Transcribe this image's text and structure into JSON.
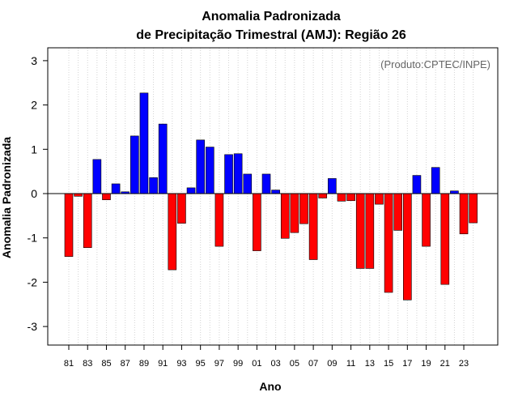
{
  "chart_data": {
    "type": "bar",
    "title_line1": "Anomalia Padronizada",
    "title_line2": "de Precipitação Trimestral (AMJ): Região 26",
    "xlabel": "Ano",
    "ylabel": "Anomalia Padronizada",
    "watermark": "(Produto:CPTEC/INPE)",
    "ylim": [
      -3.4,
      3.3
    ],
    "yticks": [
      "-3",
      "-2",
      "-1",
      "0",
      "1",
      "2",
      "3"
    ],
    "ytick_values": [
      -3,
      -2,
      -1,
      0,
      1,
      2,
      3
    ],
    "categories": [
      "81",
      "82",
      "83",
      "84",
      "85",
      "86",
      "87",
      "88",
      "89",
      "90",
      "91",
      "92",
      "93",
      "94",
      "95",
      "96",
      "97",
      "98",
      "99",
      "00",
      "01",
      "02",
      "03",
      "04",
      "05",
      "06",
      "07",
      "08",
      "09",
      "10",
      "11",
      "12",
      "13",
      "14",
      "15",
      "16",
      "17",
      "18",
      "19",
      "20",
      "21",
      "22",
      "23",
      "24"
    ],
    "xtick_labels": [
      "81",
      "83",
      "85",
      "87",
      "89",
      "91",
      "93",
      "95",
      "97",
      "99",
      "01",
      "03",
      "05",
      "07",
      "09",
      "11",
      "13",
      "15",
      "17",
      "19",
      "21",
      "23"
    ],
    "values": [
      -1.42,
      -0.06,
      -1.22,
      0.77,
      -0.14,
      0.22,
      0.04,
      1.3,
      2.27,
      0.36,
      1.57,
      -1.72,
      -0.67,
      0.13,
      1.21,
      1.05,
      -1.19,
      0.88,
      0.9,
      0.44,
      -1.29,
      0.44,
      0.08,
      -1.01,
      -0.88,
      -0.68,
      -1.49,
      -0.1,
      0.34,
      -0.17,
      -0.16,
      -1.69,
      -1.69,
      -0.24,
      -2.23,
      -0.83,
      -2.4,
      0.41,
      -1.19,
      0.59,
      -2.05,
      0.06,
      -0.91,
      -0.66
    ],
    "colors": {
      "positive": "#0000ff",
      "negative": "#ff0000",
      "zero_line": "#000000",
      "grid": "#d3d3d3"
    },
    "grid": "vertical-dotted"
  }
}
